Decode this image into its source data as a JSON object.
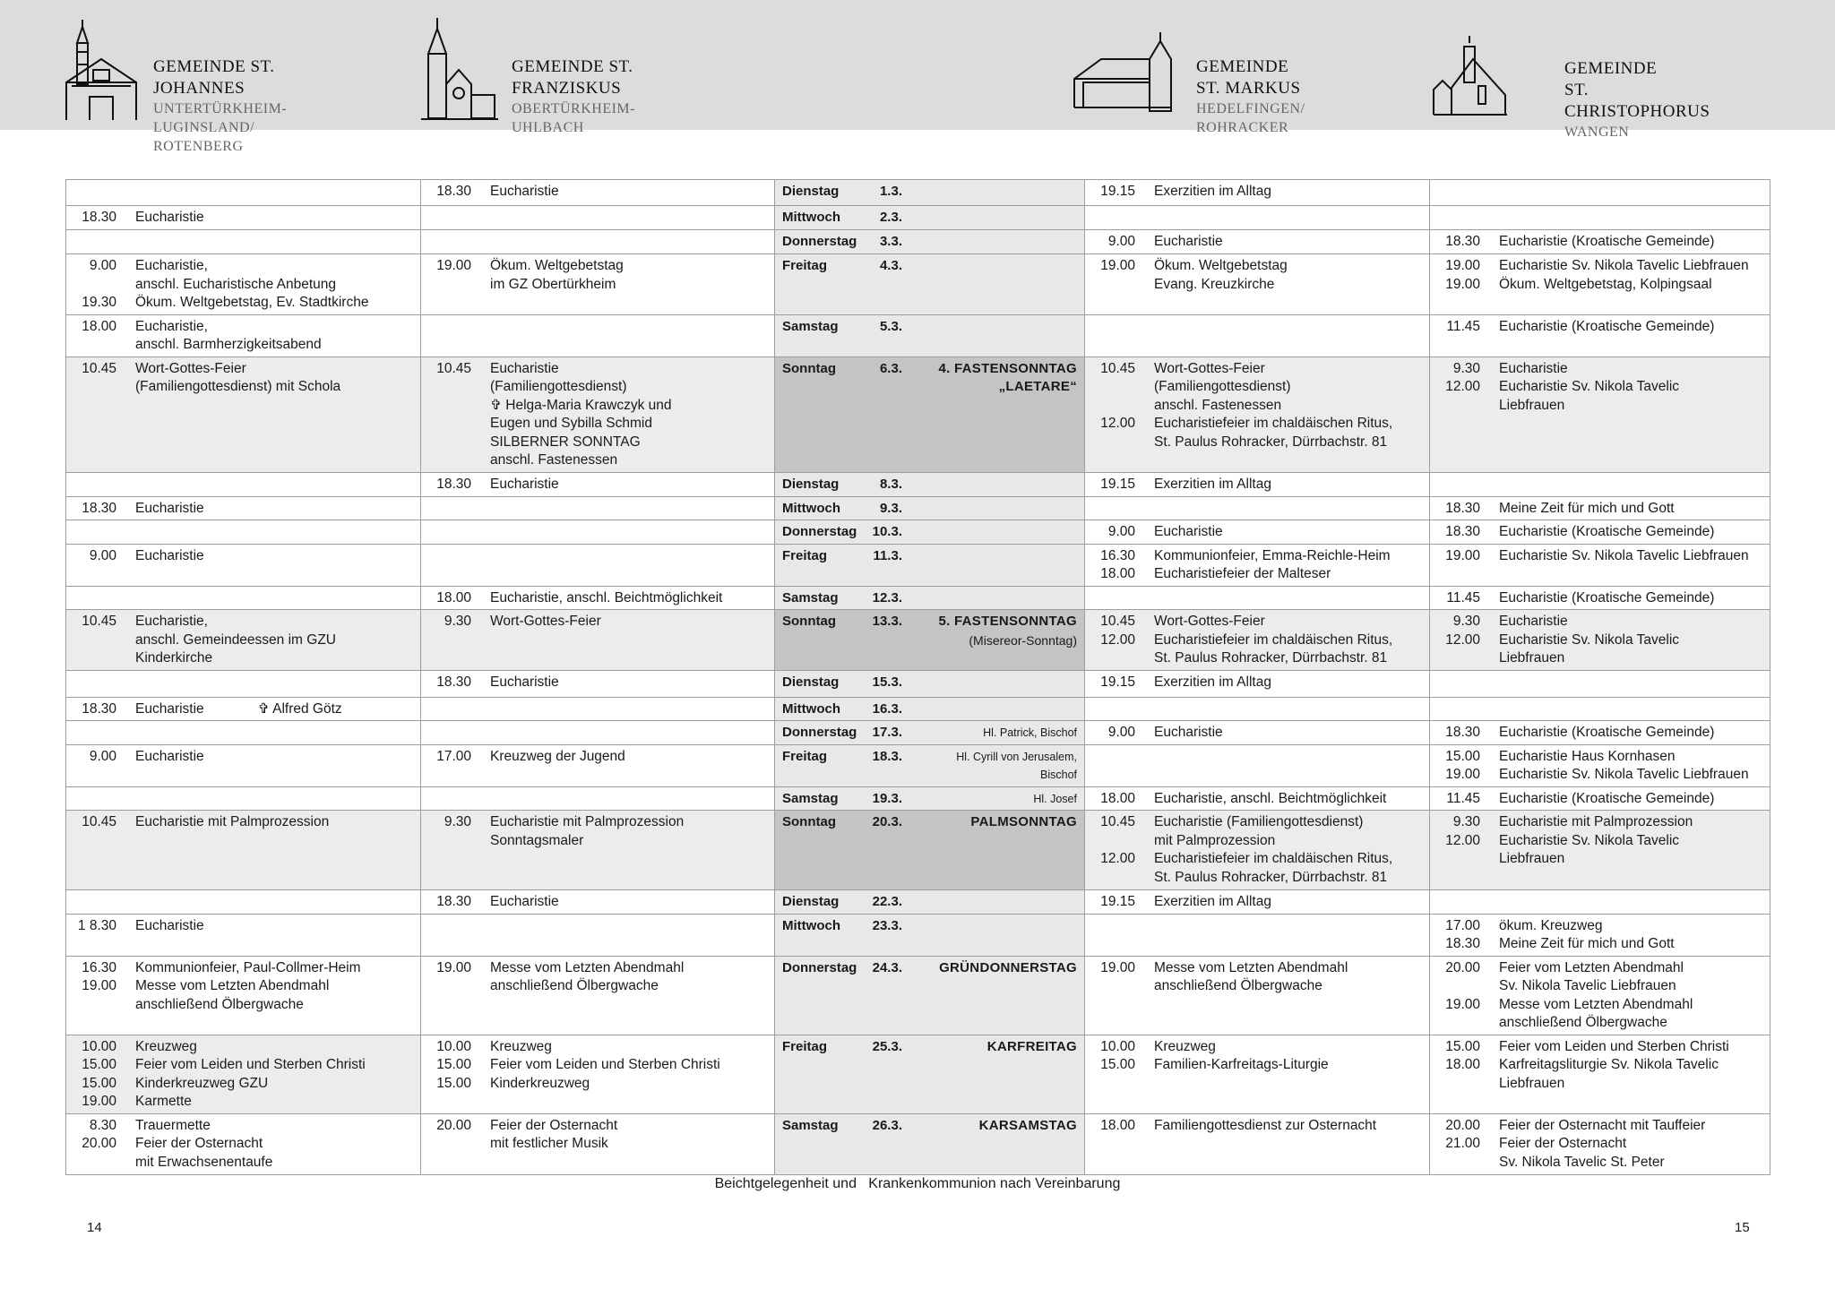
{
  "header": {
    "parishes": [
      {
        "title": "GEMEINDE ST. JOHANNES",
        "subtitle": [
          "UNTERTÜRKHEIM-LUGINSLAND/",
          "ROTENBERG"
        ]
      },
      {
        "title": "GEMEINDE ST. FRANZISKUS",
        "subtitle": [
          "OBERTÜRKHEIM-UHLBACH"
        ]
      },
      {
        "title": "GEMEINDE ST. MARKUS",
        "subtitle": [
          "HEDELFINGEN/",
          "ROHRACKER"
        ]
      },
      {
        "title": "GEMEINDE",
        "title2": "ST. CHRISTOPHORUS",
        "subtitle": [
          "WANGEN"
        ]
      }
    ]
  },
  "rows": [
    {
      "day": "Dienstag",
      "date": "1.3.",
      "feast": [],
      "cells": [
        [],
        [
          [
            "18.30",
            "Eucharistie"
          ]
        ],
        [
          [
            "19.15",
            "Exerzitien im Alltag"
          ]
        ],
        []
      ]
    },
    {
      "day": "Mittwoch",
      "date": "2.3.",
      "feast": [],
      "cells": [
        [
          [
            "18.30",
            "Eucharistie"
          ]
        ],
        [],
        [],
        []
      ]
    },
    {
      "day": "Donnerstag",
      "date": "3.3.",
      "feast": [],
      "cells": [
        [],
        [],
        [
          [
            "9.00",
            "Eucharistie"
          ]
        ],
        [
          [
            "18.30",
            "Eucharistie (Kroatische Gemeinde)"
          ]
        ]
      ]
    },
    {
      "day": "Freitag",
      "date": "4.3.",
      "feast": [],
      "cells": [
        [
          [
            "9.00",
            "Eucharistie,"
          ],
          [
            "",
            "anschl. Eucharistische Anbetung"
          ],
          [
            "19.30",
            "Ökum. Weltgebetstag, Ev. Stadtkirche"
          ]
        ],
        [
          [
            "19.00",
            "Ökum. Weltgebetstag"
          ],
          [
            "",
            "im GZ Obertürkheim"
          ]
        ],
        [
          [
            "19.00",
            "Ökum. Weltgebetstag"
          ],
          [
            "",
            "Evang. Kreuzkirche"
          ]
        ],
        [
          [
            "19.00",
            "Eucharistie Sv. Nikola Tavelic Liebfrauen"
          ],
          [
            "19.00",
            "Ökum. Weltgebetstag, Kolpingsaal"
          ]
        ]
      ]
    },
    {
      "day": "Samstag",
      "date": "5.3.",
      "feast": [],
      "cells": [
        [
          [
            "18.00",
            "Eucharistie,"
          ],
          [
            "",
            "anschl. Barmherzigkeitsabend"
          ]
        ],
        [],
        [],
        [
          [
            "11.45",
            "Eucharistie (Kroatische Gemeinde)"
          ]
        ]
      ]
    },
    {
      "day": "Sonntag",
      "date": "6.3.",
      "sunday": true,
      "feast_style": "big",
      "feast": [
        "4. FASTENSONNTAG",
        "„LAETARE“"
      ],
      "cells": [
        [
          [
            "10.45",
            "Wort-Gottes-Feier"
          ],
          [
            "",
            "(Familiengottesdienst) mit Schola"
          ]
        ],
        [
          [
            "10.45",
            "Eucharistie"
          ],
          [
            "",
            "(Familiengottesdienst)"
          ],
          [
            "",
            "✞ Helga-Maria Krawczyk und"
          ],
          [
            "",
            "Eugen und Sybilla Schmid"
          ],
          [
            "",
            "SILBERNER SONNTAG"
          ],
          [
            "",
            "anschl. Fastenessen"
          ]
        ],
        [
          [
            "10.45",
            "Wort-Gottes-Feier"
          ],
          [
            "",
            "(Familiengottesdienst)"
          ],
          [
            "",
            "anschl. Fastenessen"
          ],
          [
            "12.00",
            "Eucharistiefeier im chaldäischen Ritus,"
          ],
          [
            "",
            "St. Paulus Rohracker, Dürrbachstr. 81"
          ]
        ],
        [
          [
            "9.30",
            "Eucharistie"
          ],
          [
            "12.00",
            "Eucharistie Sv. Nikola Tavelic"
          ],
          [
            "",
            "Liebfrauen"
          ]
        ]
      ]
    },
    {
      "day": "Dienstag",
      "date": "8.3.",
      "feast": [],
      "cells": [
        [],
        [
          [
            "18.30",
            "Eucharistie"
          ]
        ],
        [
          [
            "19.15",
            "Exerzitien im Alltag"
          ]
        ],
        []
      ]
    },
    {
      "day": "Mittwoch",
      "date": "9.3.",
      "feast": [],
      "cells": [
        [
          [
            "18.30",
            "Eucharistie"
          ]
        ],
        [],
        [],
        [
          [
            "18.30",
            "Meine Zeit für mich und Gott"
          ]
        ]
      ]
    },
    {
      "day": "Donnerstag",
      "date": "10.3.",
      "feast": [],
      "cells": [
        [],
        [],
        [
          [
            "9.00",
            "Eucharistie"
          ]
        ],
        [
          [
            "18.30",
            "Eucharistie (Kroatische Gemeinde)"
          ]
        ]
      ]
    },
    {
      "day": "Freitag",
      "date": "11.3.",
      "feast": [],
      "cells": [
        [
          [
            "9.00",
            "Eucharistie"
          ]
        ],
        [],
        [
          [
            "16.30",
            "Kommunionfeier, Emma-Reichle-Heim"
          ],
          [
            "18.00",
            "Eucharistiefeier der Malteser"
          ]
        ],
        [
          [
            "19.00",
            "Eucharistie Sv. Nikola Tavelic Liebfrauen"
          ]
        ]
      ]
    },
    {
      "day": "Samstag",
      "date": "12.3.",
      "feast": [],
      "cells": [
        [],
        [
          [
            "18.00",
            "Eucharistie, anschl. Beichtmöglichkeit"
          ]
        ],
        [],
        [
          [
            "11.45",
            "Eucharistie (Kroatische Gemeinde)"
          ]
        ]
      ]
    },
    {
      "day": "Sonntag",
      "date": "13.3.",
      "sunday": true,
      "feast_style": "big",
      "feast": [
        "5. FASTENSONNTAG",
        "(Misereor-Sonntag)"
      ],
      "cells": [
        [
          [
            "10.45",
            "Eucharistie,"
          ],
          [
            "",
            "anschl. Gemeindeessen im GZU"
          ],
          [
            "",
            "Kinderkirche"
          ]
        ],
        [
          [
            "9.30",
            "Wort-Gottes-Feier"
          ]
        ],
        [
          [
            "10.45",
            "Wort-Gottes-Feier"
          ],
          [
            "12.00",
            "Eucharistiefeier im chaldäischen Ritus,"
          ],
          [
            "",
            "St. Paulus Rohracker, Dürrbachstr. 81"
          ]
        ],
        [
          [
            "9.30",
            "Eucharistie"
          ],
          [
            "12.00",
            "Eucharistie Sv. Nikola Tavelic"
          ],
          [
            "",
            "Liebfrauen"
          ]
        ]
      ]
    },
    {
      "day": "Dienstag",
      "date": "15.3.",
      "feast": [],
      "cells": [
        [],
        [
          [
            "18.30",
            "Eucharistie"
          ]
        ],
        [
          [
            "19.15",
            "Exerzitien im Alltag"
          ]
        ],
        []
      ]
    },
    {
      "day": "Mittwoch",
      "date": "16.3.",
      "feast": [],
      "cells": [
        [
          [
            "18.30",
            "Eucharistie",
            "✞ Alfred Götz"
          ]
        ],
        [],
        [],
        []
      ]
    },
    {
      "day": "Donnerstag",
      "date": "17.3.",
      "feast_style": "small",
      "feast": [
        "Hl. Patrick, Bischof"
      ],
      "cells": [
        [],
        [],
        [
          [
            "9.00",
            "Eucharistie"
          ]
        ],
        [
          [
            "18.30",
            "Eucharistie (Kroatische Gemeinde)"
          ]
        ]
      ]
    },
    {
      "day": "Freitag",
      "date": "18.3.",
      "feast_style": "small",
      "feast": [
        "Hl. Cyrill von Jerusalem,",
        "Bischof"
      ],
      "cells": [
        [
          [
            "9.00",
            "Eucharistie"
          ]
        ],
        [
          [
            "17.00",
            "Kreuzweg der Jugend"
          ]
        ],
        [],
        [
          [
            "15.00",
            "Eucharistie Haus Kornhasen"
          ],
          [
            "19.00",
            "Eucharistie Sv. Nikola Tavelic Liebfrauen"
          ]
        ]
      ]
    },
    {
      "day": "Samstag",
      "date": "19.3.",
      "feast_style": "small",
      "feast": [
        "Hl. Josef"
      ],
      "cells": [
        [],
        [],
        [
          [
            "18.00",
            "Eucharistie, anschl. Beichtmöglichkeit"
          ]
        ],
        [
          [
            "11.45",
            "Eucharistie (Kroatische Gemeinde)"
          ]
        ]
      ]
    },
    {
      "day": "Sonntag",
      "date": "20.3.",
      "sunday": true,
      "feast_style": "big",
      "feast": [
        "PALMSONNTAG"
      ],
      "cells": [
        [
          [
            "10.45",
            "Eucharistie mit Palmprozession"
          ]
        ],
        [
          [
            "9.30",
            "Eucharistie mit Palmprozession"
          ],
          [
            "",
            "Sonntagsmaler"
          ]
        ],
        [
          [
            "10.45",
            "Eucharistie (Familiengottesdienst)"
          ],
          [
            "",
            "mit Palmprozession"
          ],
          [
            "12.00",
            "Eucharistiefeier im chaldäischen Ritus,"
          ],
          [
            "",
            "St. Paulus Rohracker, Dürrbachstr. 81"
          ]
        ],
        [
          [
            "9.30",
            "Eucharistie mit Palmprozession"
          ],
          [
            "12.00",
            "Eucharistie Sv. Nikola Tavelic"
          ],
          [
            "",
            "Liebfrauen"
          ]
        ]
      ]
    },
    {
      "day": "Dienstag",
      "date": "22.3.",
      "feast": [],
      "cells": [
        [],
        [
          [
            "18.30",
            "Eucharistie"
          ]
        ],
        [
          [
            "19.15",
            "Exerzitien im Alltag"
          ]
        ],
        []
      ]
    },
    {
      "day": "Mittwoch",
      "date": "23.3.",
      "feast": [],
      "cells": [
        [
          [
            "1 8.30",
            "Eucharistie"
          ]
        ],
        [],
        [],
        [
          [
            "17.00",
            "ökum. Kreuzweg"
          ],
          [
            "18.30",
            "Meine Zeit für mich und Gott"
          ]
        ]
      ]
    },
    {
      "day": "Donnerstag",
      "date": "24.3.",
      "feast_style": "big",
      "feast": [
        "GRÜNDONNERSTAG"
      ],
      "cells": [
        [
          [
            "16.30",
            "Kommunionfeier, Paul-Collmer-Heim"
          ],
          [
            "19.00",
            "Messe vom Letzten Abendmahl"
          ],
          [
            "",
            "anschließend Ölbergwache"
          ]
        ],
        [
          [
            "19.00",
            "Messe vom Letzten Abendmahl"
          ],
          [
            "",
            "anschließend Ölbergwache"
          ]
        ],
        [
          [
            "19.00",
            "Messe vom Letzten Abendmahl"
          ],
          [
            "",
            "anschließend Ölbergwache"
          ]
        ],
        [
          [
            "20.00",
            "Feier vom Letzten Abendmahl"
          ],
          [
            "",
            "Sv. Nikola Tavelic Liebfrauen"
          ],
          [
            "19.00",
            "Messe vom Letzten Abendmahl"
          ],
          [
            "",
            "anschließend Ölbergwache"
          ]
        ]
      ]
    },
    {
      "day": "Freitag",
      "date": "25.3.",
      "feast_style": "big",
      "shade_first": true,
      "feast": [
        "KARFREITAG"
      ],
      "cells": [
        [
          [
            "10.00",
            "Kreuzweg"
          ],
          [
            "15.00",
            "Feier vom Leiden und Sterben Christi"
          ],
          [
            "15.00",
            "Kinderkreuzweg GZU"
          ],
          [
            "19.00",
            "Karmette"
          ]
        ],
        [
          [
            "10.00",
            "Kreuzweg"
          ],
          [
            "15.00",
            "Feier vom Leiden und Sterben Christi"
          ],
          [
            "15.00",
            "Kinderkreuzweg"
          ]
        ],
        [
          [
            "10.00",
            "Kreuzweg"
          ],
          [
            "15.00",
            "Familien-Karfreitags-Liturgie"
          ]
        ],
        [
          [
            "15.00",
            "Feier vom Leiden und Sterben Christi"
          ],
          [
            "18.00",
            "Karfreitagsliturgie Sv. Nikola Tavelic"
          ],
          [
            "",
            "Liebfrauen"
          ]
        ]
      ]
    },
    {
      "day": "Samstag",
      "date": "26.3.",
      "feast_style": "big",
      "feast": [
        "KARSAMSTAG"
      ],
      "cells": [
        [
          [
            "8.30",
            "Trauermette"
          ],
          [
            "20.00",
            "Feier der Osternacht"
          ],
          [
            "",
            "mit Erwachsenentaufe"
          ]
        ],
        [
          [
            "20.00",
            "Feier der Osternacht"
          ],
          [
            "",
            "mit festlicher Musik"
          ]
        ],
        [
          [
            "18.00",
            "Familiengottesdienst zur Osternacht"
          ]
        ],
        [
          [
            "20.00",
            "Feier der Osternacht mit Tauffeier"
          ],
          [
            "21.00",
            "Feier der Osternacht"
          ],
          [
            "",
            "Sv. Nikola Tavelic St. Peter"
          ]
        ]
      ]
    }
  ],
  "footer": {
    "note": "Beichtgelegenheit und   Krankenkommunion nach Vereinbarung",
    "page_left": "14",
    "page_right": "15"
  },
  "colors": {
    "header_bg": "#dcdcdc",
    "day_col": "#e8e8e8",
    "sunday_day": "#c4c4c4",
    "sunday_row": "#ececec",
    "border": "#9d9d9d"
  }
}
